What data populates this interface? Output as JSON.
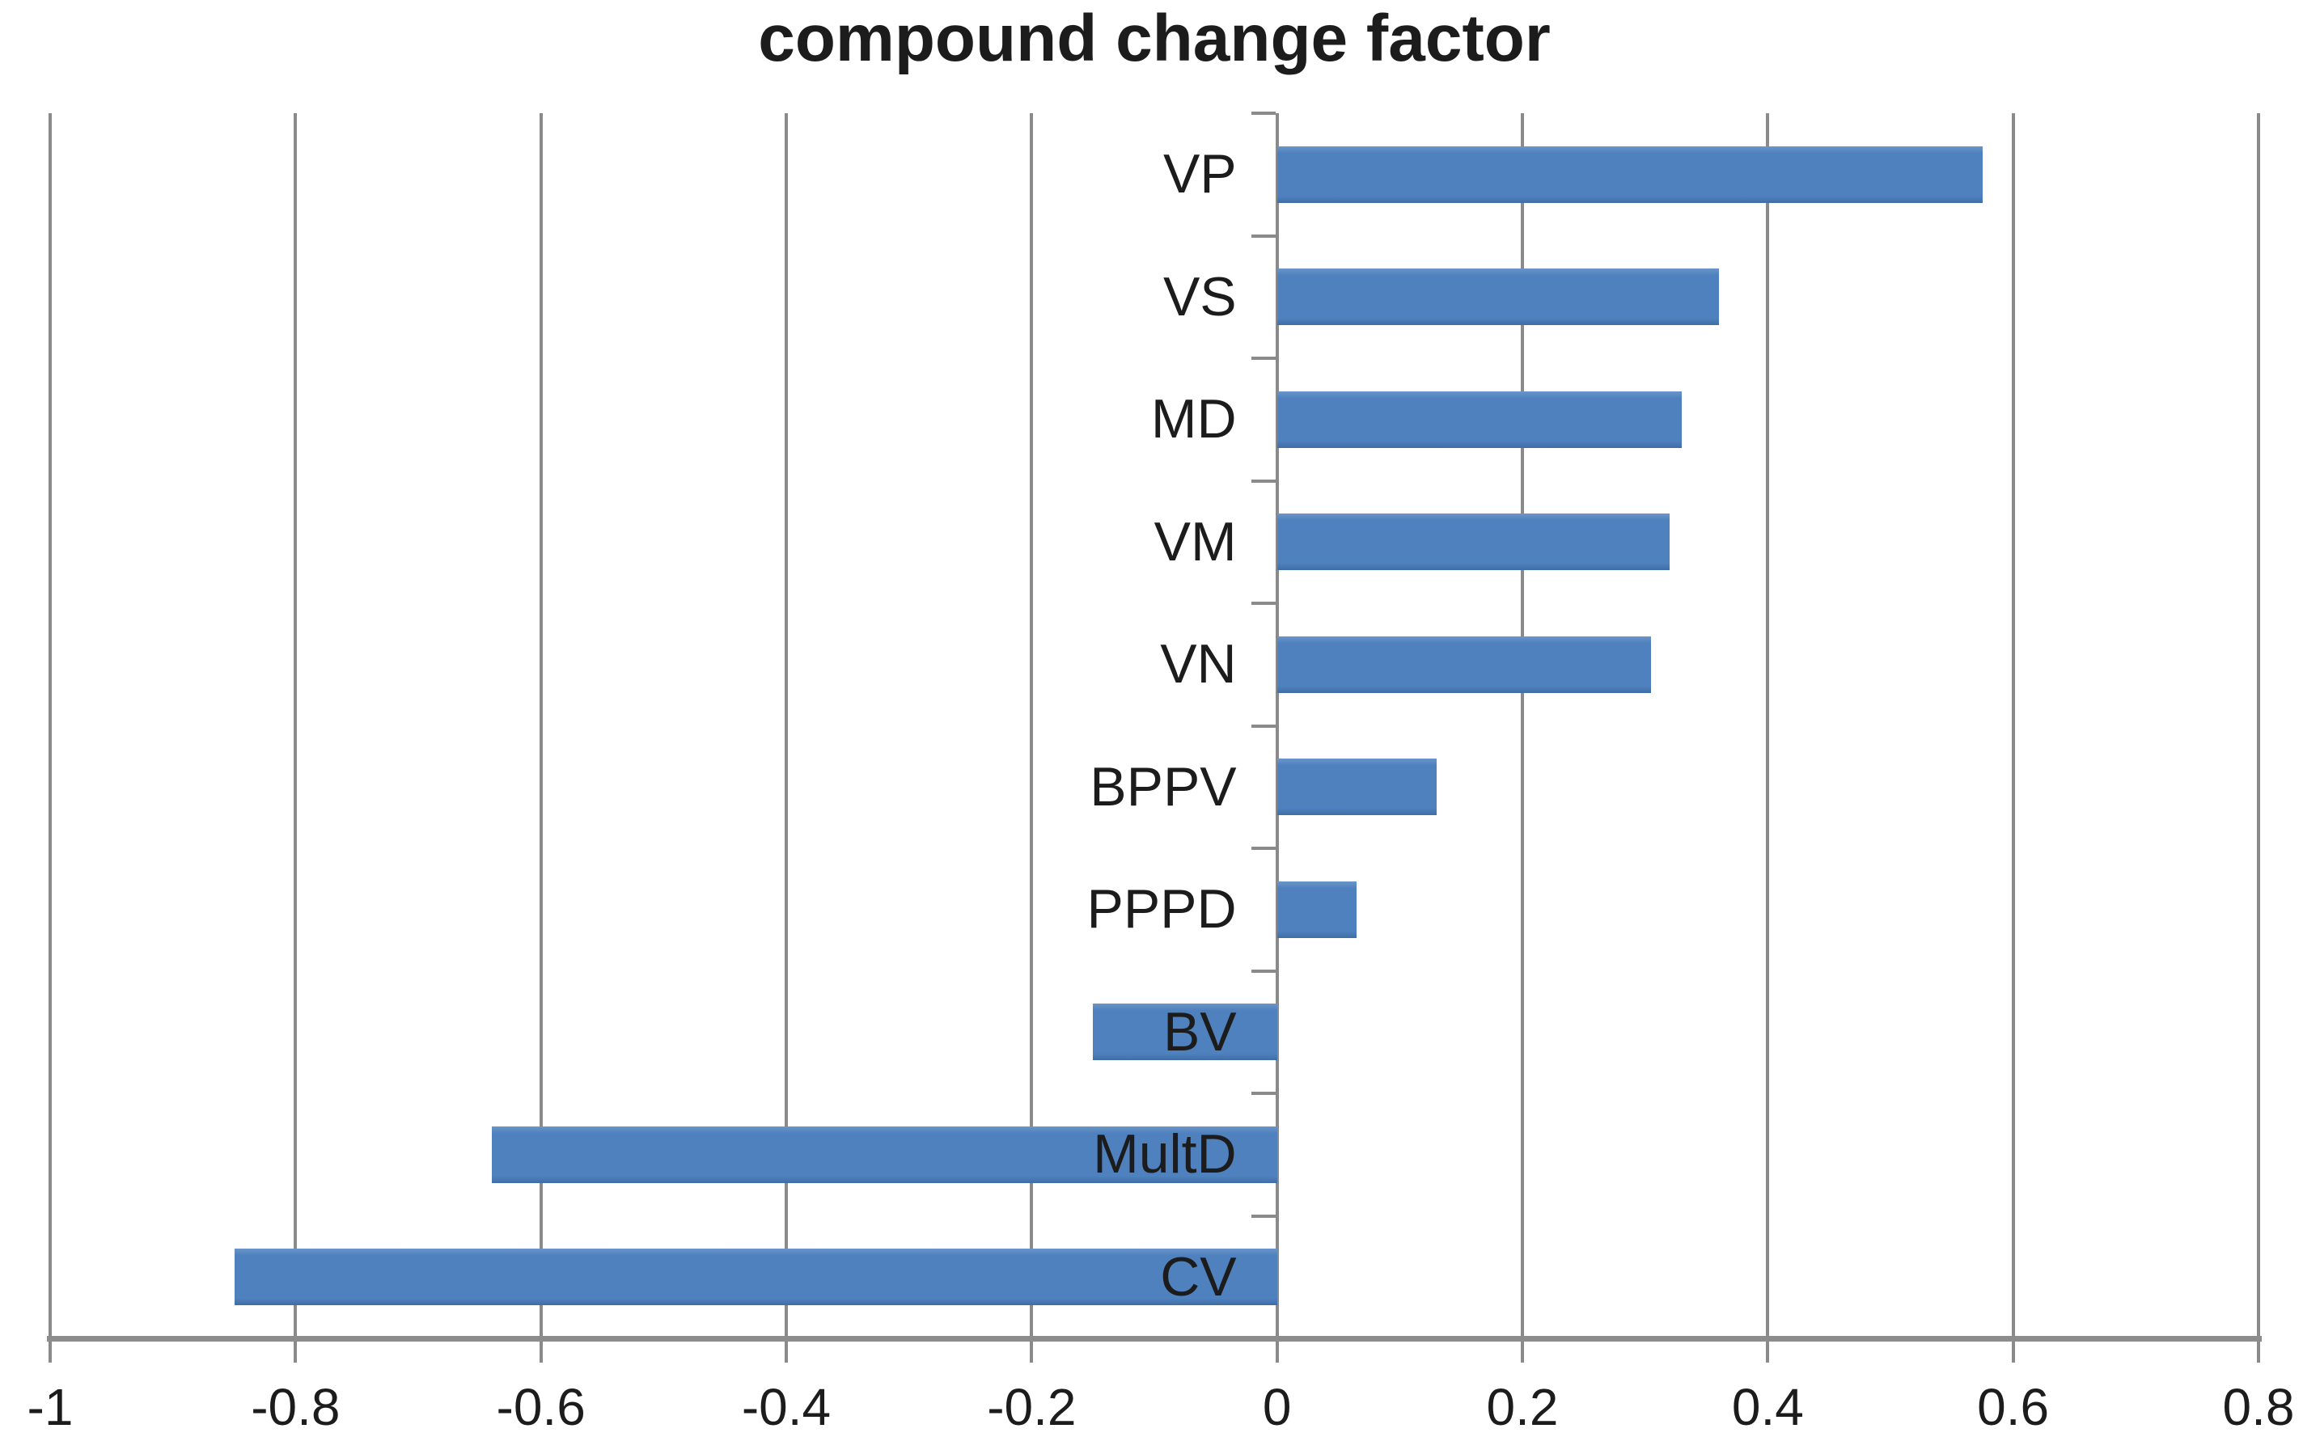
{
  "chart_data": {
    "type": "bar",
    "orientation": "horizontal",
    "title": "compound change factor",
    "categories": [
      "VP",
      "VS",
      "MD",
      "VM",
      "VN",
      "BPPV",
      "PPPD",
      "BV",
      "MultD",
      "CV"
    ],
    "values": [
      0.575,
      0.36,
      0.33,
      0.32,
      0.305,
      0.13,
      0.065,
      -0.15,
      -0.64,
      -0.85
    ],
    "xlabel": "",
    "ylabel": "",
    "xlim": [
      -1,
      0.8
    ],
    "x_ticks": [
      -1,
      -0.8,
      -0.6,
      -0.4,
      -0.2,
      0,
      0.2,
      0.4,
      0.6,
      0.8
    ],
    "x_tick_labels": [
      "-1",
      "-0.8",
      "-0.6",
      "-0.4",
      "-0.2",
      "0",
      "0.2",
      "0.4",
      "0.6",
      "0.8"
    ],
    "grid": "vertical-gridlines-on",
    "legend": "none"
  },
  "style": {
    "bar_color": "#4e81bd",
    "bar_color_light": "#6b95ca",
    "bar_color_dark": "#3f6da6",
    "gridline_color": "#8a8a8a",
    "axis_color": "#8c8c8c",
    "text_color": "#1c1c1c",
    "background": "#ffffff"
  }
}
